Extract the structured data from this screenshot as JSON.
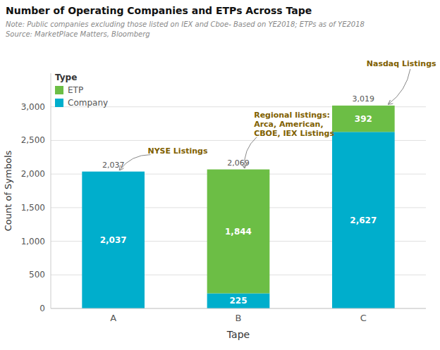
{
  "chart_data": {
    "type": "bar",
    "stacked": true,
    "title": "Number of Operating Companies and ETPs Across Tape",
    "notes": [
      "Note: Public companies excluding those listed on IEX and Cboe- Based on YE2018; ETPs as of YE2018",
      "Source: MarketPlace Matters, Bloomberg"
    ],
    "xlabel": "Tape",
    "ylabel": "Count of Symbols",
    "categories": [
      "A",
      "B",
      "C"
    ],
    "series": [
      {
        "name": "Company",
        "color": "#00AECC",
        "values": [
          2037,
          225,
          2627
        ],
        "value_labels": [
          "2,037",
          "225",
          "2,627"
        ]
      },
      {
        "name": "ETP",
        "color": "#6CBE45",
        "values": [
          0,
          1844,
          392
        ],
        "value_labels": [
          null,
          "1,844",
          "392"
        ]
      }
    ],
    "data_labels": true,
    "totals": [
      2037,
      2069,
      3019
    ],
    "total_labels": [
      "2,037",
      "2,069",
      "3,019"
    ],
    "ylim": [
      0,
      3500
    ],
    "yticks": [
      0,
      500,
      {
        "value": 1000,
        "label": "1,000"
      },
      {
        "value": 1500,
        "label": "1,500"
      },
      {
        "value": 2000,
        "label": "2,000"
      },
      {
        "value": 2500,
        "label": "2,500"
      },
      {
        "value": 3000,
        "label": "3,000"
      }
    ],
    "grid": true,
    "legend": "upper left",
    "legend_title": "Type",
    "annotations": [
      {
        "text": "NYSE Listings",
        "category": "A",
        "color": "#7F6000"
      },
      {
        "text": "Regional listings:\nArca, American,\nCBOE, IEX Listings",
        "category": "B",
        "color": "#7F6000"
      },
      {
        "text": "Nasdaq Listings",
        "category": "C",
        "color": "#7F6000"
      }
    ]
  }
}
